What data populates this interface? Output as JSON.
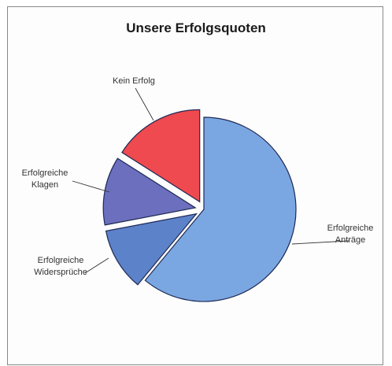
{
  "chart_data": {
    "type": "pie",
    "title": "Unsere Erfolgsquoten",
    "categories": [
      "Erfolgreiche Anträge",
      "Erfolgreiche Widersprüche",
      "Erfolgreiche Klagen",
      "Kein Erfolg"
    ],
    "values": [
      61,
      11,
      12,
      16
    ],
    "colors": [
      "#7aa7e2",
      "#5c82c9",
      "#6b6fbd",
      "#ee4a4f"
    ],
    "exploded": [
      "Erfolgreiche Widersprüche",
      "Erfolgreiche Klagen",
      "Kein Erfolg"
    ],
    "legend": "none"
  }
}
